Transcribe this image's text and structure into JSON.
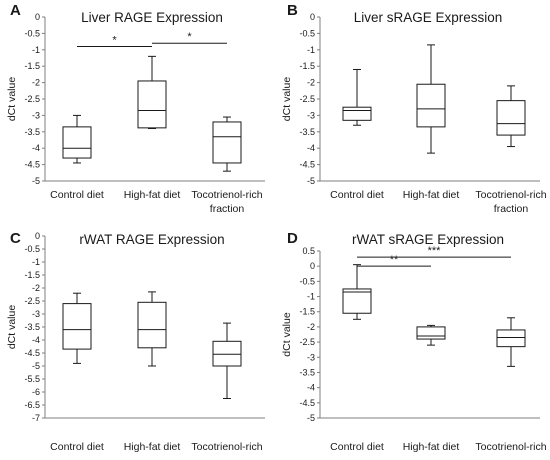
{
  "chart_data": [
    {
      "panel": "A",
      "type": "box",
      "title": "Liver RAGE Expression",
      "ylabel": "dCt value",
      "ylim": [
        -5,
        0
      ],
      "ytick_step": 0.5,
      "yticks": [
        "0",
        "-0.5",
        "-1",
        "-1.5",
        "-2",
        "-2.5",
        "-3",
        "-3.5",
        "-4",
        "-4.5",
        "-5"
      ],
      "categories": [
        "Control diet",
        "High-fat diet",
        "Tocotrienol-rich fraction"
      ],
      "boxes": [
        {
          "category": "Control diet",
          "min": -4.45,
          "q1": -4.3,
          "median": -4.0,
          "q3": -3.35,
          "max": -3.0
        },
        {
          "category": "High-fat diet",
          "min": -3.4,
          "q1": -3.38,
          "median": -2.85,
          "q3": -1.95,
          "max": -1.2
        },
        {
          "category": "Tocotrienol-rich fraction",
          "min": -4.7,
          "q1": -4.45,
          "median": -3.65,
          "q3": -3.2,
          "max": -3.05
        }
      ],
      "significance": [
        {
          "from": 0,
          "to": 1,
          "label": "*",
          "y": -0.9
        },
        {
          "from": 1,
          "to": 2,
          "label": "*",
          "y": -0.8
        }
      ],
      "grid": false
    },
    {
      "panel": "B",
      "type": "box",
      "title": "Liver sRAGE Expression",
      "ylabel": "dCt value",
      "ylim": [
        -5,
        0
      ],
      "ytick_step": 0.5,
      "yticks": [
        "0",
        "-0.5",
        "-1",
        "-1.5",
        "-2",
        "-2.5",
        "-3",
        "-3.5",
        "-4",
        "-4.5",
        "-5"
      ],
      "categories": [
        "Control diet",
        "High-fat diet",
        "Tocotrienol-rich fraction"
      ],
      "boxes": [
        {
          "category": "Control diet",
          "min": -3.3,
          "q1": -3.15,
          "median": -2.85,
          "q3": -2.75,
          "max": -1.6
        },
        {
          "category": "High-fat diet",
          "min": -4.15,
          "q1": -3.35,
          "median": -2.8,
          "q3": -2.05,
          "max": -0.85
        },
        {
          "category": "Tocotrienol-rich fraction",
          "min": -3.95,
          "q1": -3.6,
          "median": -3.25,
          "q3": -2.55,
          "max": -2.1
        }
      ],
      "significance": [],
      "grid": false
    },
    {
      "panel": "C",
      "type": "box",
      "title": "rWAT RAGE Expression",
      "ylabel": "dCt value",
      "ylim": [
        -7,
        0
      ],
      "ytick_step": 0.5,
      "yticks": [
        "0",
        "-0.5",
        "-1",
        "-1.5",
        "-2",
        "-2.5",
        "-3",
        "-3.5",
        "-4",
        "-4.5",
        "-5",
        "-5.5",
        "-6",
        "-6.5",
        "-7"
      ],
      "categories": [
        "Control diet",
        "High-fat diet",
        "Tocotrienol-rich fraction"
      ],
      "boxes": [
        {
          "category": "Control diet",
          "min": -4.9,
          "q1": -4.35,
          "median": -3.6,
          "q3": -2.6,
          "max": -2.2
        },
        {
          "category": "High-fat diet",
          "min": -5.0,
          "q1": -4.3,
          "median": -3.6,
          "q3": -2.55,
          "max": -2.15
        },
        {
          "category": "Tocotrienol-rich fraction",
          "min": -6.25,
          "q1": -5.0,
          "median": -4.55,
          "q3": -4.05,
          "max": -3.35
        }
      ],
      "significance": [],
      "grid": false
    },
    {
      "panel": "D",
      "type": "box",
      "title": "rWAT sRAGE Expression",
      "ylabel": "dCt value",
      "ylim": [
        -5,
        0.5
      ],
      "ytick_step": 0.5,
      "yticks": [
        "0.5",
        "0",
        "-0.5",
        "-1",
        "-1.5",
        "-2",
        "-2.5",
        "-3",
        "-3.5",
        "-4",
        "-4.5",
        "-5"
      ],
      "categories": [
        "Control diet",
        "High-fat diet",
        "Tocotrienol-rich fraction"
      ],
      "boxes": [
        {
          "category": "Control diet",
          "min": -1.75,
          "q1": -1.55,
          "median": -0.85,
          "q3": -0.75,
          "max": 0.05
        },
        {
          "category": "High-fat diet",
          "min": -2.6,
          "q1": -2.4,
          "median": -2.3,
          "q3": -2.0,
          "max": -1.95
        },
        {
          "category": "Tocotrienol-rich fraction",
          "min": -3.3,
          "q1": -2.65,
          "median": -2.35,
          "q3": -2.1,
          "max": -1.7
        }
      ],
      "significance": [
        {
          "from": 0,
          "to": 1,
          "label": "**",
          "y": 0.0
        },
        {
          "from": 0,
          "to": 2,
          "label": "***",
          "y": 0.3
        }
      ],
      "grid": false
    }
  ]
}
